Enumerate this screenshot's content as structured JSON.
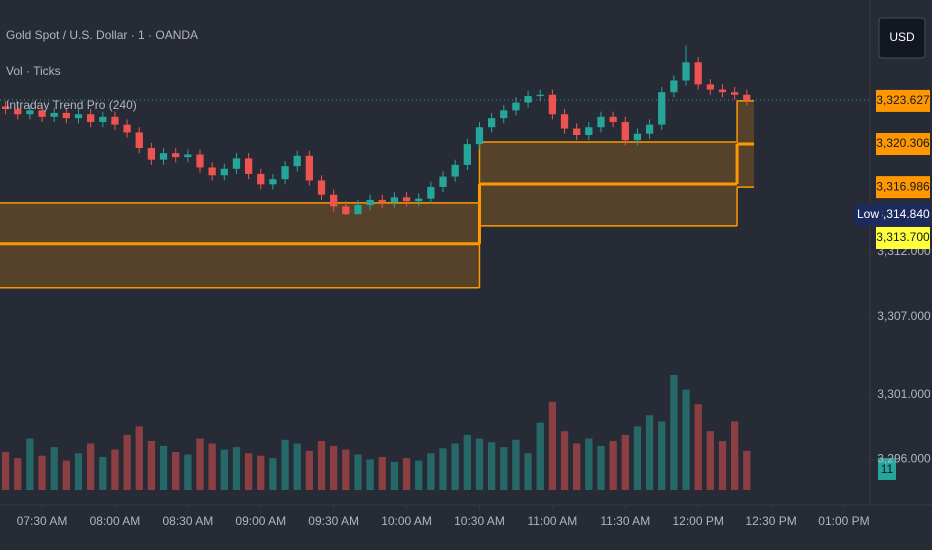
{
  "chart_data": {
    "type": "candlestick",
    "title": "Gold Spot / U.S. Dollar · 1 · OANDA",
    "indicators": [
      "Vol · Ticks",
      "Intraday Trend Pro (240)"
    ],
    "currency": "USD",
    "up_color": "#26a69a",
    "down_color": "#ef5350",
    "band_color": "#ff9800",
    "last_price_color": "#26a69a",
    "x": [
      435,
      440,
      445,
      450,
      455,
      460,
      465,
      470,
      475,
      480,
      485,
      490,
      495,
      500,
      505,
      510,
      515,
      520,
      525,
      530,
      535,
      540,
      545,
      550,
      555,
      560,
      565,
      570,
      575,
      580,
      585,
      590,
      595,
      600,
      605,
      610,
      615,
      620,
      625,
      630,
      635,
      640,
      645,
      650,
      655,
      660,
      665,
      670,
      675,
      680,
      685,
      690,
      695,
      700,
      705,
      710,
      715,
      720,
      725,
      730,
      735,
      740
    ],
    "open": [
      3323.2,
      3323.0,
      3322.6,
      3322.9,
      3322.4,
      3322.7,
      3322.3,
      3322.6,
      3322.0,
      3322.4,
      3321.8,
      3321.2,
      3320.0,
      3319.1,
      3319.6,
      3319.3,
      3319.5,
      3318.5,
      3317.9,
      3318.4,
      3319.2,
      3318.0,
      3317.2,
      3317.6,
      3318.6,
      3319.4,
      3317.5,
      3316.4,
      3315.5,
      3314.9,
      3315.6,
      3316.0,
      3315.8,
      3316.2,
      3315.9,
      3316.1,
      3317.0,
      3317.8,
      3318.7,
      3320.3,
      3321.6,
      3322.3,
      3322.9,
      3323.5,
      3324.0,
      3324.1,
      3322.6,
      3321.5,
      3321.0,
      3321.6,
      3322.4,
      3322.0,
      3320.6,
      3321.1,
      3321.8,
      3324.3,
      3325.2,
      3326.6,
      3324.9,
      3324.5,
      3324.3,
      3324.1
    ],
    "high": [
      3323.6,
      3323.4,
      3323.3,
      3323.3,
      3323.1,
      3323.1,
      3323.0,
      3323.0,
      3322.8,
      3322.8,
      3322.2,
      3321.6,
      3320.4,
      3320.0,
      3320.0,
      3319.9,
      3319.9,
      3318.9,
      3318.8,
      3319.6,
      3319.6,
      3318.4,
      3318.0,
      3319.0,
      3319.8,
      3319.8,
      3317.9,
      3316.8,
      3315.9,
      3316.0,
      3316.4,
      3316.4,
      3316.6,
      3316.6,
      3316.5,
      3317.4,
      3318.2,
      3319.1,
      3320.7,
      3322.0,
      3322.7,
      3323.3,
      3323.9,
      3324.4,
      3324.5,
      3324.5,
      3323.0,
      3321.9,
      3322.0,
      3322.8,
      3322.8,
      3322.4,
      3321.5,
      3322.2,
      3324.7,
      3325.6,
      3327.9,
      3327.0,
      3325.3,
      3324.9,
      3324.7,
      3324.5
    ],
    "low": [
      3322.6,
      3322.2,
      3322.2,
      3322.0,
      3322.0,
      3321.9,
      3321.9,
      3321.6,
      3321.6,
      3321.4,
      3320.8,
      3319.6,
      3318.7,
      3318.7,
      3318.9,
      3318.9,
      3318.1,
      3317.5,
      3317.5,
      3318.0,
      3317.6,
      3316.8,
      3316.8,
      3317.2,
      3318.2,
      3317.1,
      3316.0,
      3315.1,
      3314.84,
      3314.9,
      3315.2,
      3315.4,
      3315.4,
      3315.5,
      3315.5,
      3315.7,
      3316.6,
      3317.4,
      3318.3,
      3319.9,
      3321.2,
      3321.9,
      3322.5,
      3323.1,
      3323.6,
      3322.2,
      3321.1,
      3320.6,
      3320.6,
      3321.2,
      3321.6,
      3320.2,
      3320.2,
      3320.7,
      3321.4,
      3323.9,
      3324.8,
      3324.5,
      3324.1,
      3323.9,
      3323.7,
      3323.3
    ],
    "close": [
      3323.0,
      3322.6,
      3322.9,
      3322.4,
      3322.7,
      3322.3,
      3322.6,
      3322.0,
      3322.4,
      3321.8,
      3321.2,
      3320.0,
      3319.1,
      3319.6,
      3319.3,
      3319.5,
      3318.5,
      3317.9,
      3318.4,
      3319.2,
      3318.0,
      3317.2,
      3317.6,
      3318.6,
      3319.4,
      3317.5,
      3316.4,
      3315.5,
      3314.9,
      3315.6,
      3316.0,
      3315.8,
      3316.2,
      3315.9,
      3316.1,
      3317.0,
      3317.8,
      3318.7,
      3320.3,
      3321.6,
      3322.3,
      3322.9,
      3323.5,
      3324.0,
      3324.1,
      3322.6,
      3321.5,
      3321.0,
      3321.6,
      3322.4,
      3322.0,
      3320.6,
      3321.1,
      3321.8,
      3324.3,
      3325.2,
      3326.6,
      3324.9,
      3324.5,
      3324.3,
      3324.1,
      3323.7
    ],
    "volume": [
      310,
      260,
      420,
      280,
      350,
      240,
      300,
      380,
      270,
      330,
      450,
      520,
      400,
      360,
      310,
      290,
      420,
      380,
      330,
      350,
      300,
      280,
      260,
      410,
      380,
      320,
      400,
      360,
      330,
      290,
      250,
      270,
      230,
      260,
      240,
      300,
      340,
      380,
      450,
      420,
      390,
      350,
      410,
      300,
      550,
      720,
      480,
      380,
      420,
      360,
      400,
      450,
      520,
      610,
      560,
      940,
      820,
      700,
      480,
      400,
      560,
      320
    ],
    "xlim": [
      432.7,
      790.7
    ],
    "xticks": [
      {
        "value": 450,
        "label": "07:30 AM"
      },
      {
        "value": 480,
        "label": "08:00 AM"
      },
      {
        "value": 510,
        "label": "08:30 AM"
      },
      {
        "value": 540,
        "label": "09:00 AM"
      },
      {
        "value": 570,
        "label": "09:30 AM"
      },
      {
        "value": 600,
        "label": "10:00 AM"
      },
      {
        "value": 630,
        "label": "10:30 AM"
      },
      {
        "value": 660,
        "label": "11:00 AM"
      },
      {
        "value": 690,
        "label": "11:30 AM"
      },
      {
        "value": 720,
        "label": "12:00 PM"
      },
      {
        "value": 750,
        "label": "12:30 PM"
      },
      {
        "value": 780,
        "label": "01:00 PM"
      }
    ],
    "ylim": [
      3292.5,
      3331.4
    ],
    "yticks": [
      {
        "value": 3296,
        "label": "3,296.000"
      },
      {
        "value": 3301,
        "label": "3,301.000"
      },
      {
        "value": 3307,
        "label": "3,307.000"
      },
      {
        "value": 3312,
        "label": "3,312.000"
      }
    ],
    "y2lim": [
      0,
      4000
    ],
    "bands": [
      {
        "start": 420,
        "end": 630,
        "upper": 3315.77,
        "mid": 3312.62,
        "lower": 3309.23
      },
      {
        "start": 630,
        "end": 736,
        "upper": 3320.46,
        "mid": 3317.23,
        "lower": 3314.0
      },
      {
        "start": 736,
        "end": 743,
        "upper": 3323.627,
        "mid": 3320.306,
        "lower": 3316.986
      }
    ],
    "price_tags": [
      {
        "value": 3323.627,
        "label": "3,323.627",
        "color": "#ff9800"
      },
      {
        "value": 3320.306,
        "label": "3,320.306",
        "color": "#ff9800"
      },
      {
        "value": 3316.986,
        "label": "3,316.986",
        "color": "#ff9800"
      },
      {
        "name": "Low",
        "value": 3314.84,
        "label": "3,314.840",
        "color": "#1c2b5e"
      },
      {
        "value": 3313.7,
        "label": "3,313.700",
        "color": "#ffff3b"
      }
    ],
    "volume_badge": "11"
  }
}
